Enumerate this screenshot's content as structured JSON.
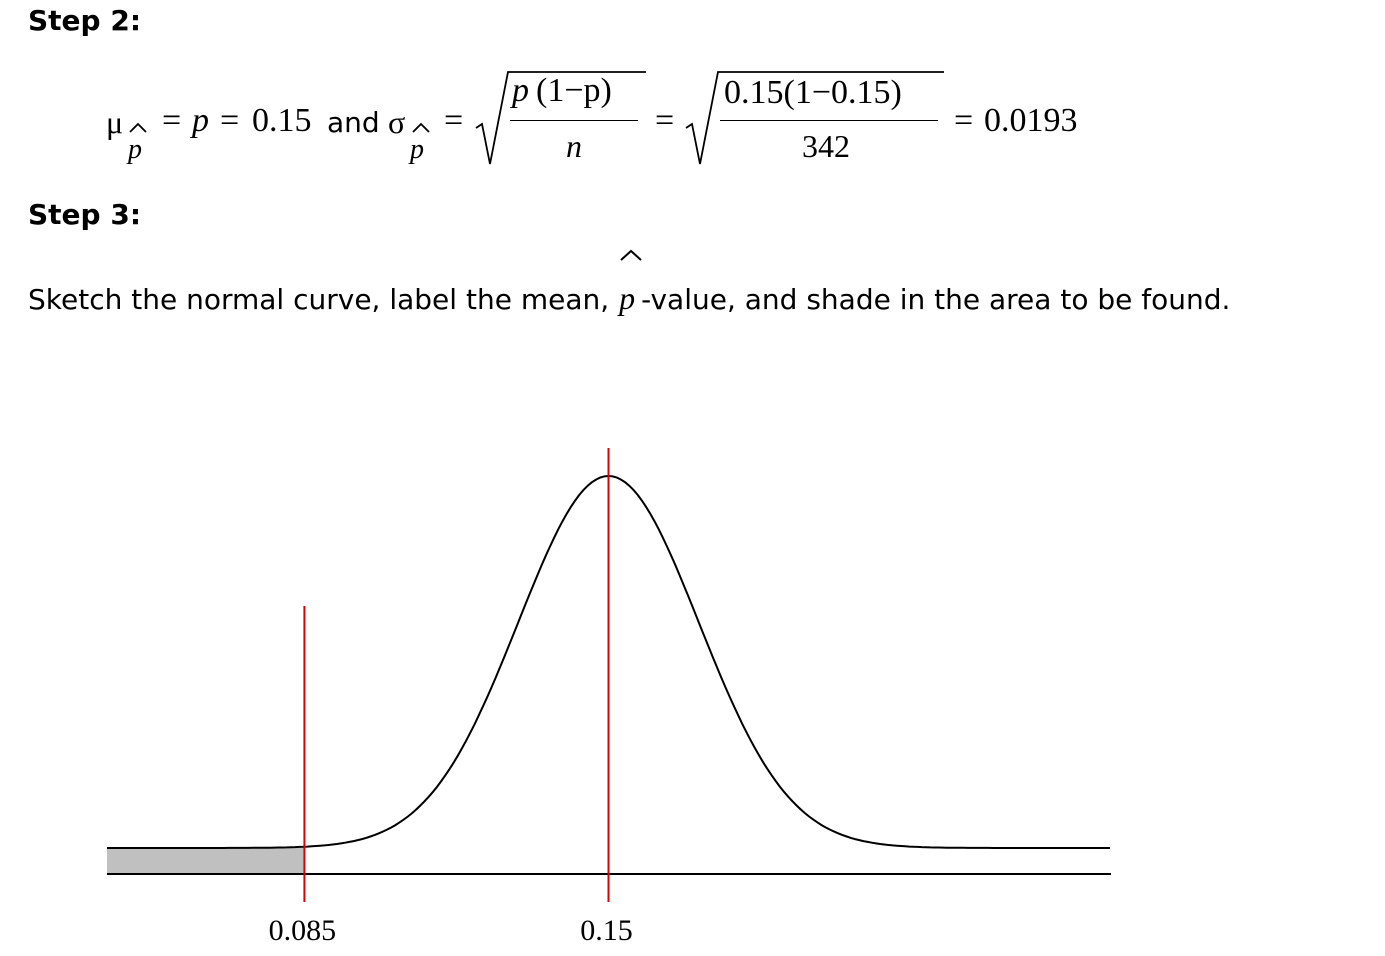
{
  "step2": {
    "heading": "Step 2:",
    "mu_symbol": "μ",
    "sigma_symbol": "σ",
    "p_sub": "p",
    "equals": "=",
    "p": "p",
    "p_value": "0.15",
    "and": "and",
    "frac1_num_p": "p",
    "frac1_num_rest": "(1−p)",
    "frac1_den": "n",
    "frac2_num": "0.15(1−0.15)",
    "frac2_den": "342",
    "result": "0.0193"
  },
  "step3": {
    "heading": "Step 3:",
    "instruction_before": "Sketch the normal curve, label the mean,",
    "instruction_p": "p",
    "instruction_after": "-value, and shade in the area to be found."
  },
  "chart_data": {
    "type": "area",
    "distribution": "normal",
    "mean": 0.15,
    "sd": 0.0193,
    "xlim": [
      0.107,
      0.225
    ],
    "shaded_region": {
      "from": 0.107,
      "to": 0.085
    },
    "reference_lines": [
      0.085,
      0.15
    ],
    "tick_labels": [
      "0.085",
      "0.15"
    ],
    "colors": {
      "curve": "#000000",
      "shade": "#c0c0c0",
      "reference": "#dd0000"
    }
  }
}
